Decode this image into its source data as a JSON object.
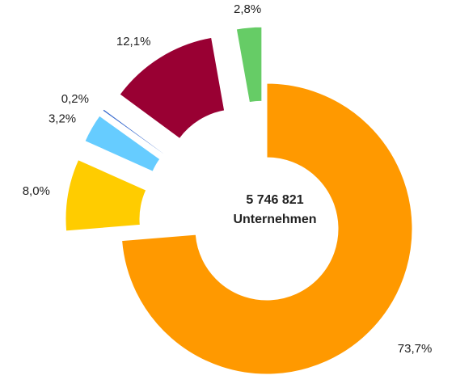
{
  "chart_data": {
    "type": "donut",
    "values": [
      73.7,
      8.0,
      3.2,
      0.2,
      12.1,
      2.8
    ],
    "value_labels": [
      "73,7%",
      "8,0%",
      "3,2%",
      "0,2%",
      "12,1%",
      "2,8%"
    ],
    "colors": [
      "#ff9900",
      "#ffcc00",
      "#66ccff",
      "#3366cc",
      "#990033",
      "#66cc66"
    ],
    "center_text": [
      "5 746 821",
      "Unternehmen"
    ]
  }
}
